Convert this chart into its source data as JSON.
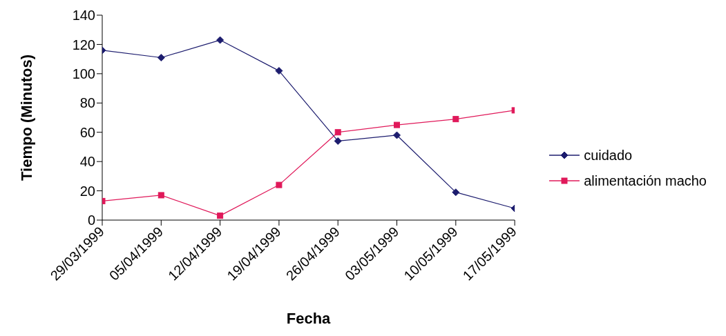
{
  "chart_data": {
    "type": "line",
    "xlabel": "Fecha",
    "ylabel": "Tiempo (Minutos)",
    "categories": [
      "29/03/1999",
      "05/04/1999",
      "12/04/1999",
      "19/04/1999",
      "26/04/1999",
      "03/05/1999",
      "10/05/1999",
      "17/05/1999"
    ],
    "series": [
      {
        "name": "cuidado",
        "color": "#1c1c6e",
        "marker": "diamond",
        "values": [
          116,
          111,
          123,
          102,
          54,
          58,
          19,
          8
        ]
      },
      {
        "name": "alimentación macho",
        "color": "#e0195a",
        "marker": "square",
        "values": [
          13,
          17,
          3,
          24,
          60,
          65,
          69,
          75
        ]
      }
    ],
    "ylim": [
      0,
      140
    ],
    "yticks": [
      0,
      20,
      40,
      60,
      80,
      100,
      120,
      140
    ],
    "grid": false,
    "legend": "right",
    "line_style": "solid"
  }
}
